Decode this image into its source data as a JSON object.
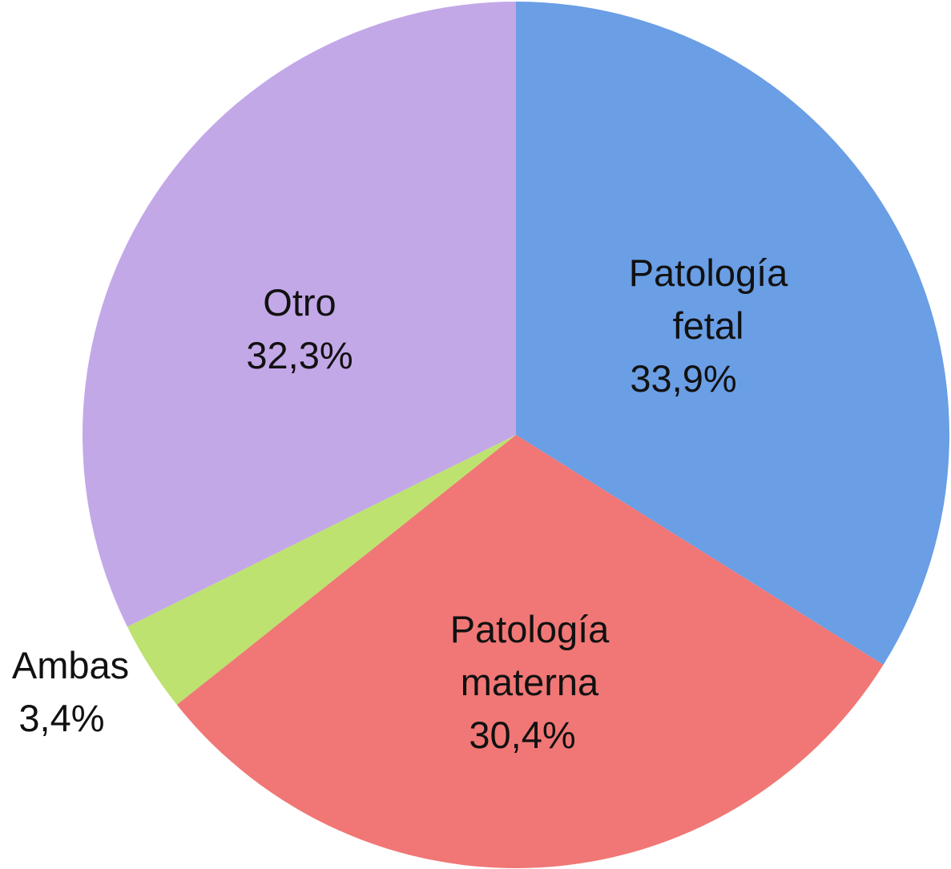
{
  "chart_data": {
    "type": "pie",
    "title": "",
    "slices": [
      {
        "label_lines": [
          "Patología",
          "fetal"
        ],
        "value": 33.9,
        "value_text": "33,9%",
        "color": "#6a9ee5"
      },
      {
        "label_lines": [
          "Patología",
          "materna"
        ],
        "value": 30.4,
        "value_text": "30,4%",
        "color": "#f07775"
      },
      {
        "label_lines": [
          "Ambas"
        ],
        "value": 3.4,
        "value_text": "3,4%",
        "color": "#bde26f"
      },
      {
        "label_lines": [
          "Otro"
        ],
        "value": 32.3,
        "value_text": "32,3%",
        "color": "#c3a8e8"
      }
    ],
    "start_angle": "12 o'clock",
    "direction": "clockwise"
  }
}
